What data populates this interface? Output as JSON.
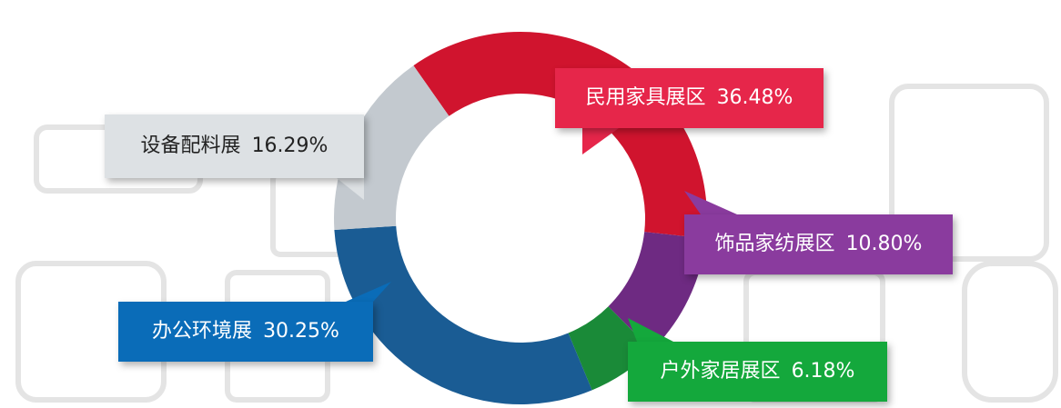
{
  "chart_data": {
    "type": "donut",
    "categories": [
      "民用家具展区",
      "饰品家纺展区",
      "户外家居展区",
      "办公环境展",
      "设备配料展"
    ],
    "values": [
      36.48,
      10.8,
      6.18,
      30.25,
      16.29
    ],
    "value_labels": [
      "36.48%",
      "10.80%",
      "6.18%",
      "30.25%",
      "16.29%"
    ],
    "colors": [
      "#d0142e",
      "#6e2a82",
      "#1a8a38",
      "#1a5c94",
      "#c3c9cf"
    ],
    "label_colors": [
      "#e6264a",
      "#8a3b9e",
      "#14a83c",
      "#0a6cb8",
      "#dde1e4"
    ]
  }
}
